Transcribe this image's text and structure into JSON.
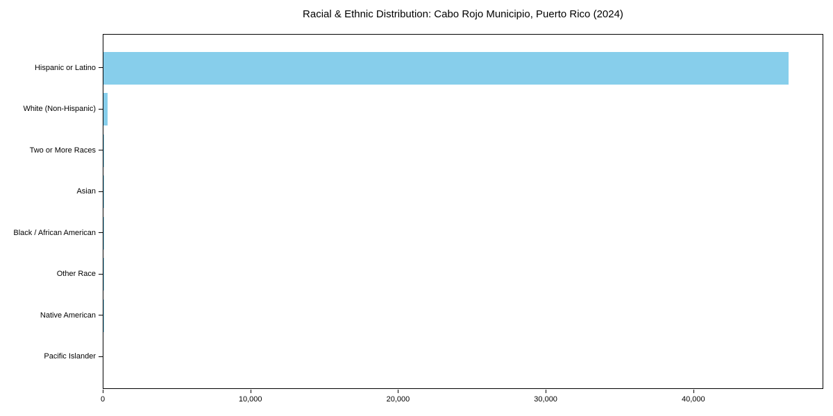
{
  "chart_data": {
    "type": "bar",
    "orientation": "horizontal",
    "title": "Racial & Ethnic Distribution: Cabo Rojo Municipio, Puerto Rico (2024)",
    "categories": [
      "Hispanic or Latino",
      "White (Non-Hispanic)",
      "Two or More Races",
      "Asian",
      "Black / African American",
      "Other Race",
      "Native American",
      "Pacific Islander"
    ],
    "values": [
      46400,
      260,
      45,
      30,
      15,
      10,
      5,
      0
    ],
    "xlabel": "",
    "ylabel": "",
    "xlim": [
      0,
      48800
    ],
    "x_ticks": {
      "values": [
        0,
        10000,
        20000,
        30000,
        40000
      ],
      "labels": [
        "0",
        "10,000",
        "20,000",
        "30,000",
        "40,000"
      ]
    },
    "bar_color": "#87CEEB",
    "spine_color": "#000000",
    "grid": false,
    "legend": null
  }
}
